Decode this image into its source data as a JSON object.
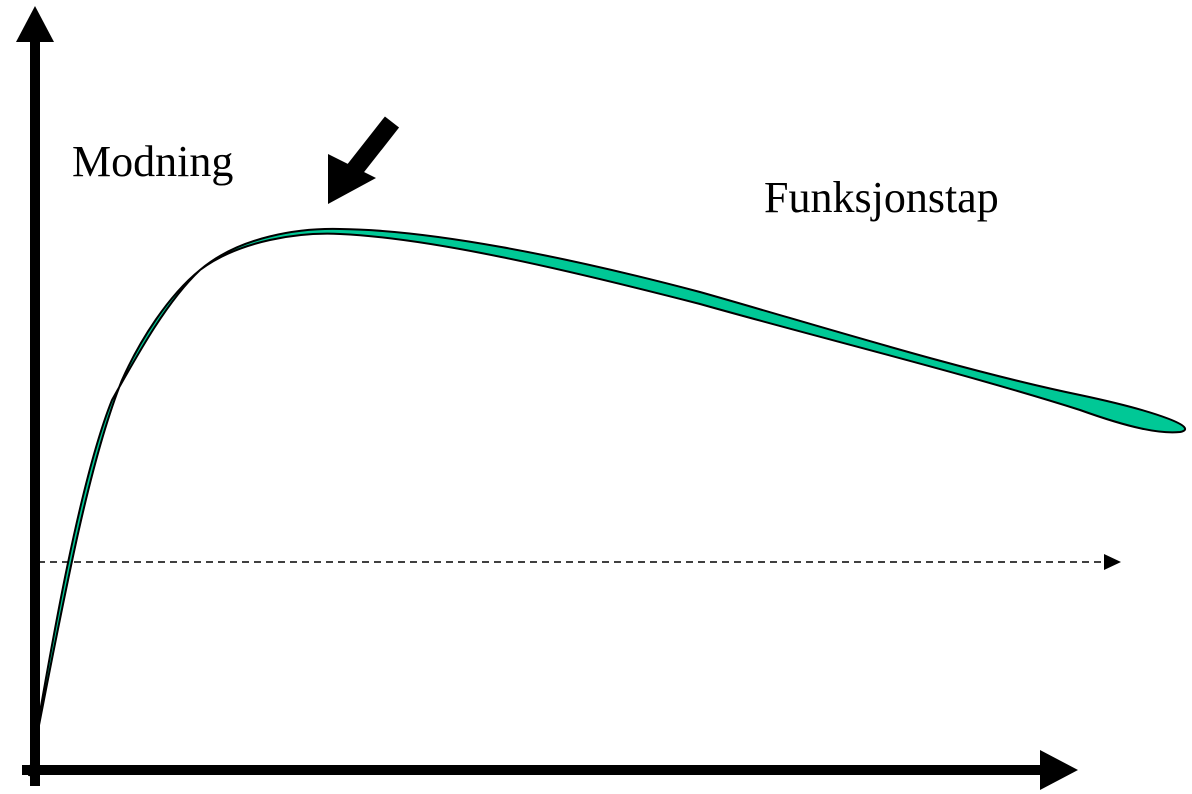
{
  "labels": {
    "left_phase": "Modning",
    "right_phase": "Funksjonstap"
  },
  "colors": {
    "curve_fill": "#00C896",
    "stroke": "#000000",
    "background": "#FFFFFF"
  },
  "icons": {
    "peak_marker": "arrow-down-left-icon",
    "threshold_end": "arrowhead-right-icon"
  }
}
